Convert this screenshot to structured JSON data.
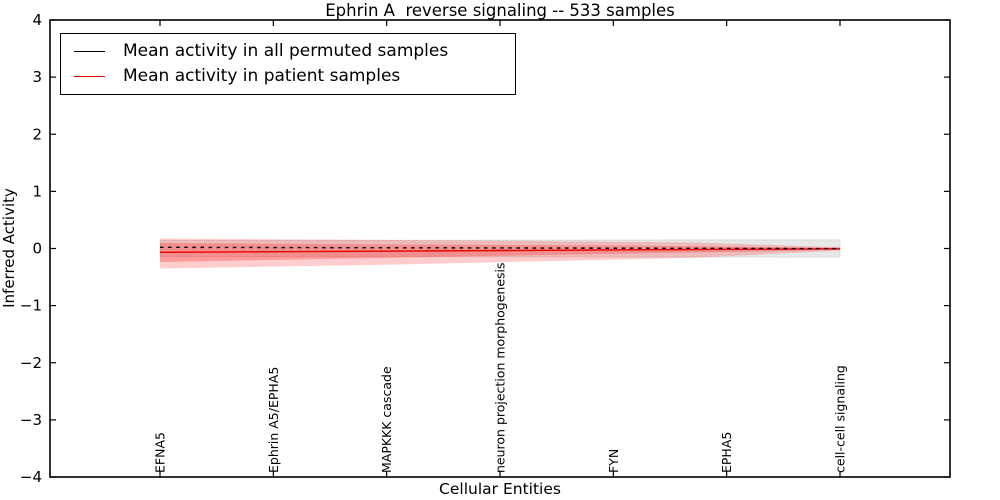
{
  "chart_data": {
    "type": "line",
    "title": "Ephrin A  reverse signaling -- 533 samples",
    "xlabel": "Cellular Entities",
    "ylabel": "Inferred Activity",
    "ylim": [
      -4,
      4
    ],
    "yticks": [
      4,
      3,
      2,
      1,
      0,
      -1,
      -2,
      -3,
      -4
    ],
    "x_tick_labels": [
      "EFNA5",
      "Ephrin A5/EPHA5",
      "MAPKKK cascade",
      "neuron projection morphogenesis",
      "FYN",
      "EPHA5",
      "cell-cell signaling"
    ],
    "grid": false,
    "legend_position": "upper left",
    "tick_direction": "in",
    "series": [
      {
        "name": "Mean activity in all permuted samples",
        "color": "#000000",
        "linestyle": "dashed",
        "x": [
          0,
          6
        ],
        "y": [
          0.021,
          -0.002
        ]
      },
      {
        "name": "Mean activity in patient samples",
        "color": "#e60000",
        "linestyle": "solid",
        "x": [
          0,
          6
        ],
        "y": [
          -0.067,
          -0.005
        ]
      }
    ],
    "bands": [
      {
        "name": "permuted-samples-std-band",
        "color": "#d9d9d9",
        "opacity": 0.6,
        "edge": "#bfbfbf",
        "top": [
          [
            0,
            0.14
          ],
          [
            6,
            0.152
          ]
        ],
        "bottom": [
          [
            0,
            -0.14
          ],
          [
            6,
            -0.152
          ]
        ]
      },
      {
        "name": "patient-samples-outer-band",
        "color": "#ff1a1a",
        "opacity": 0.22,
        "edge": "none",
        "top": [
          [
            0,
            0.175
          ],
          [
            2.11,
            0.149
          ],
          [
            3.88,
            0.123
          ],
          [
            4.76,
            0.105
          ],
          [
            5.64,
            0.044
          ],
          [
            6,
            0.026
          ]
        ],
        "bottom": [
          [
            0,
            -0.35
          ],
          [
            2.11,
            -0.28
          ],
          [
            3.88,
            -0.201
          ],
          [
            4.76,
            -0.158
          ],
          [
            5.64,
            -0.07
          ],
          [
            6,
            -0.035
          ]
        ]
      },
      {
        "name": "patient-samples-inner-band",
        "color": "#ff1a1a",
        "opacity": 0.28,
        "edge": "none",
        "top": [
          [
            0,
            0.096
          ],
          [
            2.11,
            0.07
          ],
          [
            3.88,
            0.053
          ],
          [
            4.76,
            0.039
          ],
          [
            5.64,
            0.018
          ],
          [
            6,
            0.009
          ]
        ],
        "bottom": [
          [
            0,
            -0.236
          ],
          [
            2.11,
            -0.158
          ],
          [
            3.88,
            -0.096
          ],
          [
            4.76,
            -0.067
          ],
          [
            5.64,
            -0.04
          ],
          [
            6,
            -0.023
          ]
        ]
      }
    ]
  },
  "legend": {
    "items": [
      {
        "label": "Mean activity in all permuted samples",
        "color": "#000000"
      },
      {
        "label": "Mean activity in patient samples",
        "color": "#e60000"
      }
    ]
  }
}
